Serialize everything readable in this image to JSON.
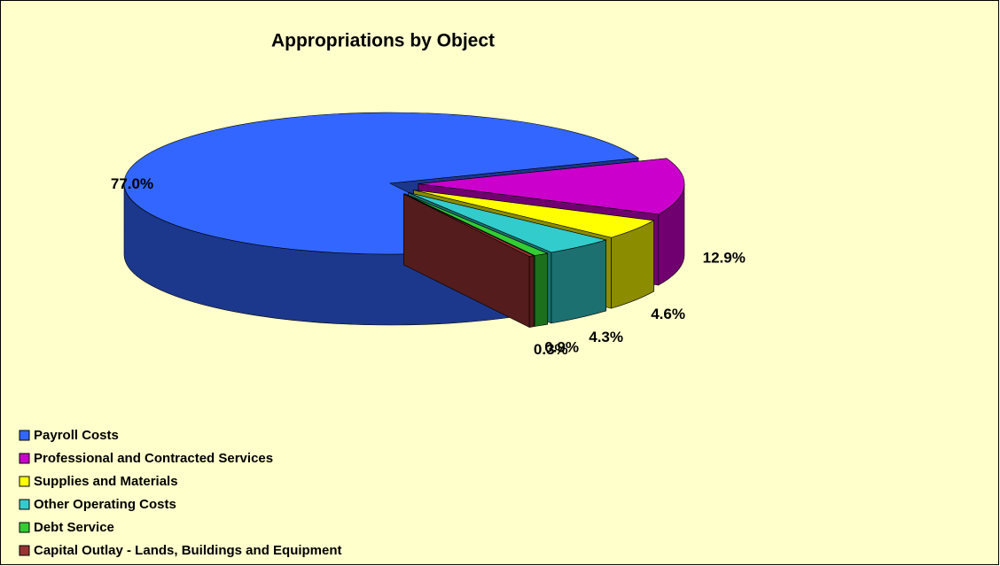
{
  "chart_data": {
    "type": "pie",
    "title": "Appropriations by Object",
    "categories": [
      "Payroll Costs",
      "Professional and Contracted Services",
      "Supplies and Materials",
      "Other Operating Costs",
      "Debt Service",
      "Capital Outlay - Lands, Buildings and Equipment"
    ],
    "values": [
      77.0,
      12.9,
      4.6,
      4.3,
      0.9,
      0.3
    ],
    "value_labels": [
      "77.0%",
      "12.9%",
      "4.6%",
      "4.3%",
      "0.9%",
      "0.3%"
    ],
    "colors": [
      "#3366ff",
      "#cc00cc",
      "#ffff00",
      "#33cccc",
      "#33cc33",
      "#993333"
    ],
    "legend": "bottom-left"
  }
}
